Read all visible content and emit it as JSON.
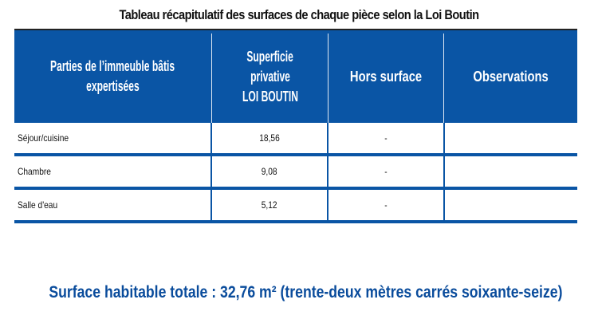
{
  "title": "Tableau récapitulatif des surfaces de chaque pièce selon la Loi Boutin",
  "colors": {
    "header_bg": "#0a55a5",
    "total_text": "#0a4c9c"
  },
  "table": {
    "headers": [
      {
        "lines": [
          "Parties de l’immeuble bâtis",
          "expertisées"
        ]
      },
      {
        "lines": [
          "Superficie",
          "privative",
          "LOI BOUTIN"
        ]
      },
      {
        "lines": [
          "Hors surface"
        ]
      },
      {
        "lines": [
          "Observations"
        ]
      }
    ],
    "rows": [
      {
        "piece": "Séjour/cuisine",
        "superficie": "18,56",
        "hors_surface": "-",
        "observations": ""
      },
      {
        "piece": "Chambre",
        "superficie": "9,08",
        "hors_surface": "-",
        "observations": ""
      },
      {
        "piece": "Salle d'eau",
        "superficie": "5,12",
        "hors_surface": "-",
        "observations": ""
      }
    ]
  },
  "total": "Surface habitable totale : 32,76 m² (trente-deux mètres carrés soixante-seize)"
}
